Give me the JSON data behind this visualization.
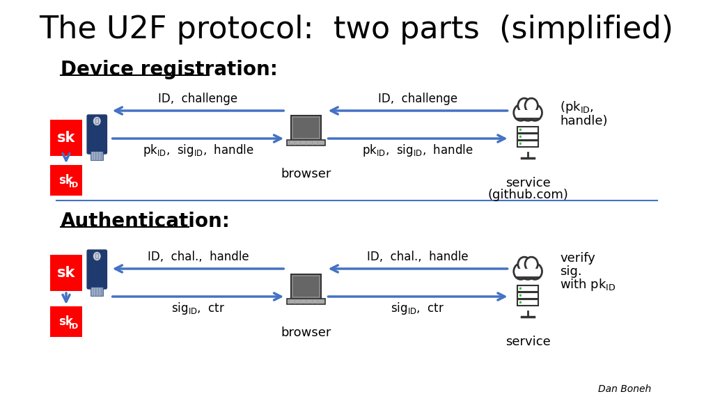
{
  "title": "The U2F protocol:  two parts  (simplified)",
  "title_fontsize": 32,
  "background_color": "#ffffff",
  "section1_label": "Device registration:",
  "section2_label": "Authentication:",
  "section_label_fontsize": 20,
  "arrow_color": "#4472c4",
  "red_color": "#ff0000",
  "dark_blue": "#1f3a6e",
  "divider_color": "#4472c4",
  "text_color": "#000000",
  "author": "Dan Boneh"
}
